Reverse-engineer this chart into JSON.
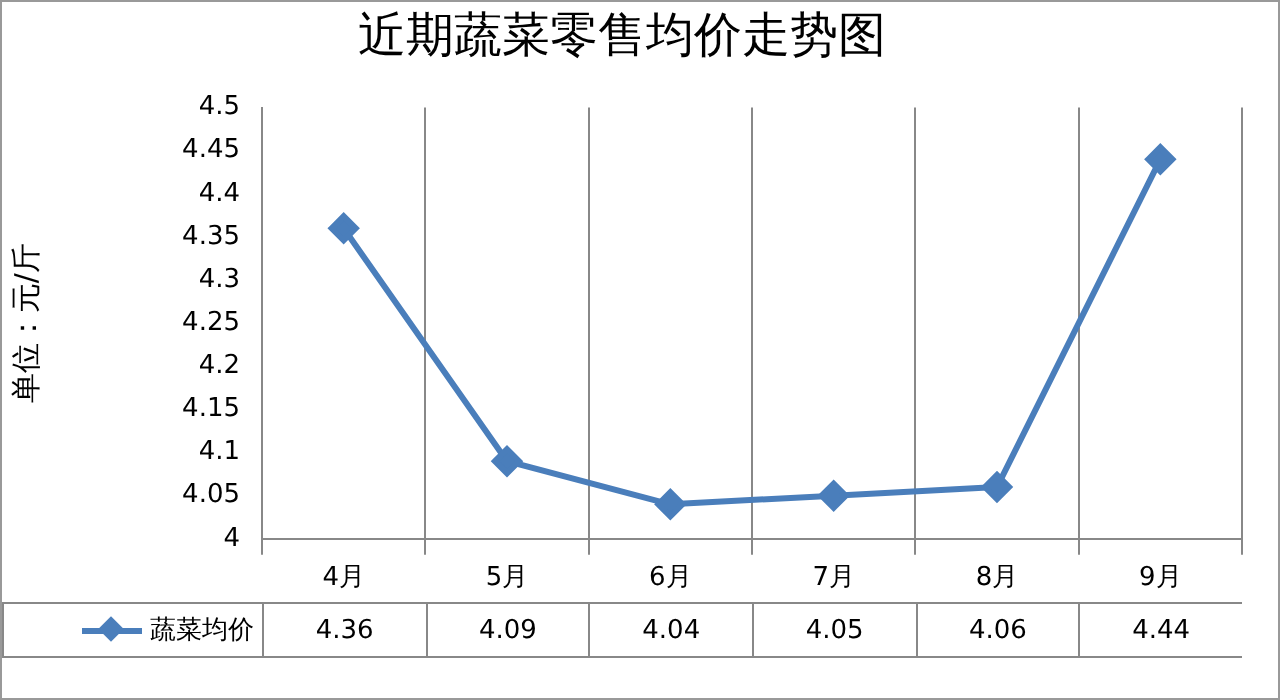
{
  "chart_data": {
    "type": "line",
    "title": "近期蔬菜零售均价走势图",
    "ylabel": "单位：元/斤",
    "categories": [
      "4月",
      "5月",
      "6月",
      "7月",
      "8月",
      "9月"
    ],
    "series": [
      {
        "name": "蔬菜均价",
        "color": "#4a7ebb",
        "values": [
          4.36,
          4.09,
          4.04,
          4.05,
          4.06,
          4.44
        ]
      }
    ],
    "ylim": [
      4,
      4.5
    ],
    "yticks": [
      4,
      4.05,
      4.1,
      4.15,
      4.2,
      4.25,
      4.3,
      4.35,
      4.4,
      4.45,
      4.5
    ],
    "grid": "x",
    "marker": "diamond",
    "line_style": "solid",
    "legend": "bottom",
    "data_labels": true
  }
}
